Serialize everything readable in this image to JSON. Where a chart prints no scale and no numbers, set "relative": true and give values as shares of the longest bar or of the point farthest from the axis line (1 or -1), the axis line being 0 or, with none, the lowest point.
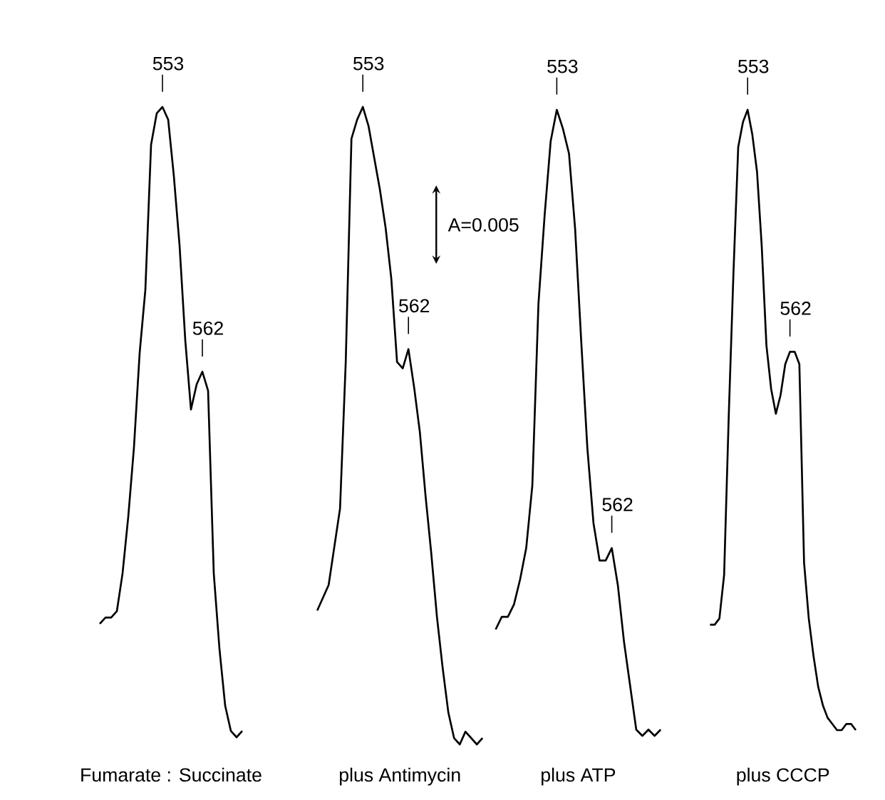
{
  "chart_data": [
    {
      "type": "line",
      "relative": true,
      "xlabel": "Fumarate : Succinate",
      "categories": [
        null,
        null,
        null,
        null,
        null,
        null,
        null,
        null,
        null,
        null,
        null,
        null,
        null,
        null,
        null,
        null,
        null,
        null,
        null,
        null,
        null,
        null,
        null,
        null,
        null,
        null
      ],
      "series": [
        {
          "color": "#000000",
          "values": [
            0.18,
            0.19,
            0.19,
            0.2,
            0.26,
            0.35,
            0.46,
            0.61,
            0.71,
            0.94,
            0.99,
            1.0,
            0.98,
            0.89,
            0.78,
            0.63,
            0.52,
            0.56,
            0.58,
            0.55,
            0.26,
            0.14,
            0.05,
            0.01,
            0,
            0.01
          ]
        }
      ],
      "annotations": [
        "553",
        "562"
      ]
    },
    {
      "type": "line",
      "relative": true,
      "xlabel": "plus Antimycin",
      "categories": [
        null,
        null,
        null,
        null,
        null,
        null,
        null,
        null,
        null,
        null,
        null,
        null,
        null,
        null,
        null,
        null,
        null,
        null,
        null,
        null,
        null,
        null,
        null,
        null,
        null,
        null,
        null,
        null,
        null,
        null
      ],
      "series": [
        {
          "color": "#000000",
          "values": [
            0.21,
            0.23,
            0.25,
            0.31,
            0.37,
            0.6,
            0.95,
            0.98,
            1.0,
            0.97,
            0.92,
            0.87,
            0.81,
            0.73,
            0.6,
            0.59,
            0.62,
            0.56,
            0.49,
            0.39,
            0.3,
            0.2,
            0.12,
            0.05,
            0.01,
            0,
            0.02,
            0.01,
            0,
            0.01
          ]
        }
      ],
      "annotations": [
        "553",
        "562",
        "A=0.005"
      ]
    },
    {
      "type": "line",
      "relative": true,
      "xlabel": "plus ATP",
      "categories": [
        null,
        null,
        null,
        null,
        null,
        null,
        null,
        null,
        null,
        null,
        null,
        null,
        null,
        null,
        null,
        null,
        null,
        null,
        null,
        null,
        null,
        null,
        null,
        null,
        null,
        null,
        null,
        null
      ],
      "series": [
        {
          "color": "#000000",
          "values": [
            0.17,
            0.19,
            0.19,
            0.21,
            0.25,
            0.3,
            0.4,
            0.69,
            0.83,
            0.95,
            1.0,
            0.97,
            0.93,
            0.81,
            0.63,
            0.46,
            0.34,
            0.28,
            0.28,
            0.3,
            0.24,
            0.15,
            0.08,
            0.01,
            0,
            0.01,
            0,
            0.01
          ]
        }
      ],
      "annotations": [
        "553",
        "562"
      ]
    },
    {
      "type": "line",
      "relative": true,
      "xlabel": "plus CCCP",
      "categories": [
        null,
        null,
        null,
        null,
        null,
        null,
        null,
        null,
        null,
        null,
        null,
        null,
        null,
        null,
        null,
        null,
        null,
        null,
        null,
        null,
        null,
        null,
        null,
        null,
        null,
        null,
        null,
        null,
        null,
        null,
        null,
        null
      ],
      "series": [
        {
          "color": "#000000",
          "values": [
            0.17,
            0.17,
            0.18,
            0.25,
            0.51,
            0.74,
            0.94,
            0.98,
            1.0,
            0.96,
            0.9,
            0.78,
            0.62,
            0.55,
            0.51,
            0.54,
            0.59,
            0.61,
            0.61,
            0.59,
            0.27,
            0.18,
            0.12,
            0.07,
            0.04,
            0.02,
            0.01,
            0,
            0,
            0.01,
            0.01,
            0
          ]
        }
      ],
      "annotations": [
        "553",
        "562"
      ]
    }
  ]
}
